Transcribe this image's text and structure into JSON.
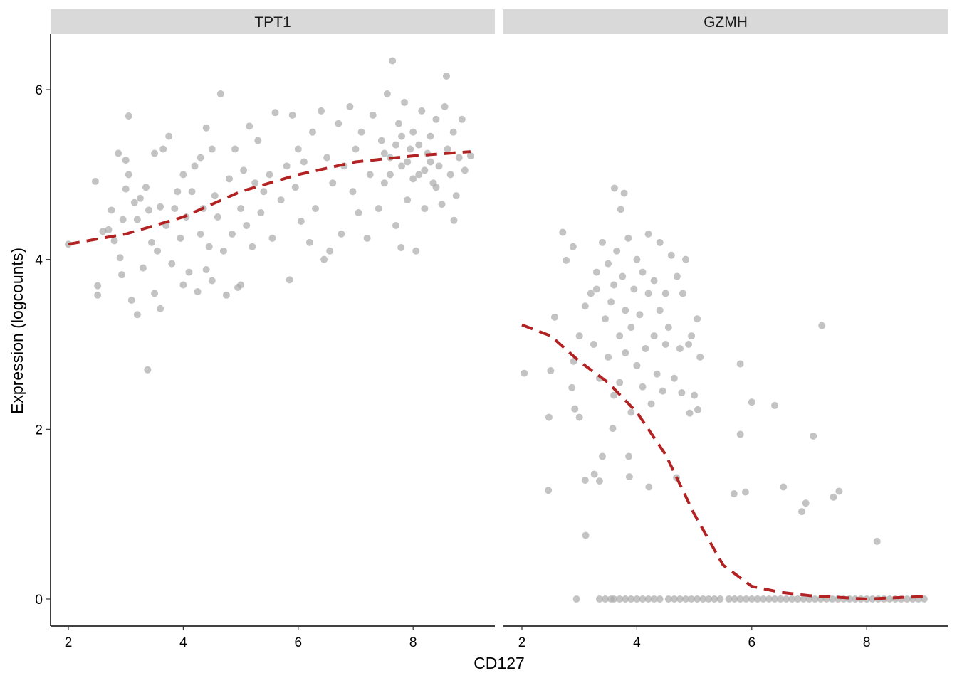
{
  "chart_data": {
    "type": "scatter",
    "xlabel": "CD127",
    "ylabel": "Expression (logcounts)",
    "xlim": [
      1.7,
      9.4
    ],
    "ylim": [
      -0.3,
      6.65
    ],
    "x_ticks": [
      "2",
      "4",
      "6",
      "8"
    ],
    "y_ticks": [
      "0",
      "2",
      "4",
      "6"
    ],
    "grid": false,
    "point_color": "#A9A9A9",
    "trend_color": "#B22222",
    "trend_style": "dashed",
    "panels": [
      {
        "title": "TPT1",
        "points": [
          [
            2.0,
            4.18
          ],
          [
            2.47,
            4.92
          ],
          [
            2.51,
            3.69
          ],
          [
            2.51,
            3.58
          ],
          [
            2.6,
            4.33
          ],
          [
            2.7,
            4.35
          ],
          [
            2.75,
            4.58
          ],
          [
            2.8,
            4.22
          ],
          [
            2.87,
            5.25
          ],
          [
            2.9,
            4.02
          ],
          [
            2.93,
            3.82
          ],
          [
            2.95,
            4.47
          ],
          [
            3.0,
            5.17
          ],
          [
            3.0,
            4.83
          ],
          [
            3.05,
            5.69
          ],
          [
            3.05,
            5.0
          ],
          [
            3.1,
            3.52
          ],
          [
            3.15,
            4.67
          ],
          [
            3.2,
            4.47
          ],
          [
            3.2,
            3.35
          ],
          [
            3.25,
            4.72
          ],
          [
            3.3,
            3.9
          ],
          [
            3.35,
            4.85
          ],
          [
            3.38,
            2.7
          ],
          [
            3.4,
            4.58
          ],
          [
            3.45,
            4.2
          ],
          [
            3.5,
            5.25
          ],
          [
            3.5,
            3.6
          ],
          [
            3.55,
            4.1
          ],
          [
            3.6,
            4.62
          ],
          [
            3.6,
            3.42
          ],
          [
            3.65,
            5.3
          ],
          [
            3.7,
            4.4
          ],
          [
            3.75,
            5.45
          ],
          [
            3.8,
            3.95
          ],
          [
            3.85,
            4.6
          ],
          [
            3.9,
            4.8
          ],
          [
            3.95,
            4.25
          ],
          [
            4.0,
            5.0
          ],
          [
            4.0,
            3.7
          ],
          [
            4.05,
            4.5
          ],
          [
            4.1,
            3.85
          ],
          [
            4.15,
            4.8
          ],
          [
            4.2,
            5.1
          ],
          [
            4.25,
            3.62
          ],
          [
            4.3,
            4.3
          ],
          [
            4.3,
            5.2
          ],
          [
            4.35,
            4.6
          ],
          [
            4.4,
            3.88
          ],
          [
            4.4,
            5.55
          ],
          [
            4.45,
            4.15
          ],
          [
            4.5,
            5.3
          ],
          [
            4.5,
            3.75
          ],
          [
            4.55,
            4.75
          ],
          [
            4.6,
            4.5
          ],
          [
            4.65,
            5.95
          ],
          [
            4.7,
            4.1
          ],
          [
            4.75,
            3.58
          ],
          [
            4.8,
            4.95
          ],
          [
            4.85,
            4.3
          ],
          [
            4.9,
            5.3
          ],
          [
            4.95,
            3.67
          ],
          [
            5.0,
            4.6
          ],
          [
            5.0,
            3.7
          ],
          [
            5.05,
            5.05
          ],
          [
            5.1,
            4.4
          ],
          [
            5.15,
            5.57
          ],
          [
            5.2,
            4.15
          ],
          [
            5.25,
            4.9
          ],
          [
            5.3,
            5.4
          ],
          [
            5.35,
            4.55
          ],
          [
            5.4,
            4.8
          ],
          [
            5.5,
            5.0
          ],
          [
            5.55,
            4.25
          ],
          [
            5.6,
            5.73
          ],
          [
            5.7,
            4.7
          ],
          [
            5.8,
            5.1
          ],
          [
            5.85,
            3.76
          ],
          [
            5.9,
            5.7
          ],
          [
            5.95,
            4.85
          ],
          [
            6.0,
            5.3
          ],
          [
            6.05,
            4.45
          ],
          [
            6.1,
            5.15
          ],
          [
            6.2,
            4.2
          ],
          [
            6.25,
            5.5
          ],
          [
            6.3,
            4.6
          ],
          [
            6.4,
            5.75
          ],
          [
            6.45,
            4.0
          ],
          [
            6.5,
            5.2
          ],
          [
            6.55,
            4.1
          ],
          [
            6.6,
            4.9
          ],
          [
            6.7,
            5.6
          ],
          [
            6.75,
            4.3
          ],
          [
            6.8,
            5.1
          ],
          [
            6.9,
            5.8
          ],
          [
            6.95,
            4.8
          ],
          [
            7.0,
            5.3
          ],
          [
            7.05,
            4.55
          ],
          [
            7.1,
            5.5
          ],
          [
            7.2,
            4.25
          ],
          [
            7.25,
            5.0
          ],
          [
            7.3,
            5.7
          ],
          [
            7.4,
            4.6
          ],
          [
            7.45,
            5.4
          ],
          [
            7.5,
            4.9
          ],
          [
            7.55,
            5.95
          ],
          [
            7.6,
            5.2
          ],
          [
            7.64,
            6.34
          ],
          [
            7.7,
            4.4
          ],
          [
            7.75,
            5.6
          ],
          [
            7.79,
            4.14
          ],
          [
            7.8,
            5.1
          ],
          [
            7.85,
            5.85
          ],
          [
            7.9,
            4.7
          ],
          [
            7.95,
            5.3
          ],
          [
            8.0,
            5.5
          ],
          [
            8.05,
            4.1
          ],
          [
            8.1,
            5.0
          ],
          [
            8.15,
            5.75
          ],
          [
            8.2,
            4.6
          ],
          [
            8.25,
            5.25
          ],
          [
            8.3,
            5.45
          ],
          [
            8.35,
            4.9
          ],
          [
            8.4,
            5.65
          ],
          [
            8.45,
            5.1
          ],
          [
            8.5,
            4.65
          ],
          [
            8.55,
            5.8
          ],
          [
            8.58,
            6.16
          ],
          [
            8.6,
            5.3
          ],
          [
            8.65,
            5.0
          ],
          [
            8.7,
            5.5
          ],
          [
            8.71,
            4.46
          ],
          [
            8.75,
            4.75
          ],
          [
            8.8,
            5.2
          ],
          [
            8.85,
            5.65
          ],
          [
            8.9,
            5.05
          ],
          [
            9.0,
            5.22
          ],
          [
            7.6,
            5.0
          ],
          [
            7.7,
            5.35
          ],
          [
            7.9,
            5.15
          ],
          [
            8.0,
            4.95
          ],
          [
            8.1,
            5.35
          ],
          [
            8.2,
            5.05
          ],
          [
            8.3,
            5.15
          ],
          [
            8.4,
            4.85
          ],
          [
            7.5,
            5.25
          ],
          [
            7.8,
            5.45
          ]
        ],
        "trend": [
          [
            2.0,
            4.18
          ],
          [
            3.0,
            4.3
          ],
          [
            4.0,
            4.5
          ],
          [
            5.0,
            4.8
          ],
          [
            6.0,
            5.0
          ],
          [
            7.0,
            5.15
          ],
          [
            8.0,
            5.22
          ],
          [
            9.0,
            5.27
          ]
        ]
      },
      {
        "title": "GZMH",
        "points": [
          [
            2.04,
            2.66
          ],
          [
            2.47,
            2.14
          ],
          [
            2.46,
            1.28
          ],
          [
            2.5,
            2.69
          ],
          [
            2.71,
            4.32
          ],
          [
            2.57,
            3.32
          ],
          [
            2.77,
            3.99
          ],
          [
            2.89,
            4.15
          ],
          [
            2.87,
            2.49
          ],
          [
            2.92,
            2.24
          ],
          [
            3.0,
            2.14
          ],
          [
            3.1,
            1.4
          ],
          [
            3.11,
            0.75
          ],
          [
            3.26,
            1.47
          ],
          [
            3.35,
            1.39
          ],
          [
            3.4,
            1.68
          ],
          [
            3.58,
            2.01
          ],
          [
            3.61,
            4.84
          ],
          [
            3.78,
            4.78
          ],
          [
            3.72,
            4.59
          ],
          [
            3.86,
            1.68
          ],
          [
            3.87,
            1.44
          ],
          [
            4.21,
            1.32
          ],
          [
            4.69,
            1.43
          ],
          [
            4.78,
            2.43
          ],
          [
            4.92,
            2.19
          ],
          [
            5.06,
            2.23
          ],
          [
            5.8,
            2.77
          ],
          [
            6.0,
            2.32
          ],
          [
            5.8,
            1.94
          ],
          [
            6.4,
            2.28
          ],
          [
            5.69,
            1.24
          ],
          [
            5.89,
            1.26
          ],
          [
            6.55,
            1.32
          ],
          [
            6.87,
            1.03
          ],
          [
            6.94,
            1.13
          ],
          [
            7.07,
            1.92
          ],
          [
            7.22,
            3.22
          ],
          [
            7.42,
            1.2
          ],
          [
            7.52,
            1.27
          ],
          [
            8.18,
            0.68
          ],
          [
            3.2,
            3.6
          ],
          [
            3.25,
            3.0
          ],
          [
            3.3,
            3.85
          ],
          [
            3.35,
            2.6
          ],
          [
            3.4,
            4.2
          ],
          [
            3.45,
            3.3
          ],
          [
            3.5,
            2.85
          ],
          [
            3.5,
            3.95
          ],
          [
            3.55,
            3.5
          ],
          [
            3.6,
            2.4
          ],
          [
            3.6,
            3.7
          ],
          [
            3.65,
            4.1
          ],
          [
            3.7,
            3.1
          ],
          [
            3.7,
            2.55
          ],
          [
            3.75,
            3.8
          ],
          [
            3.8,
            3.4
          ],
          [
            3.8,
            2.9
          ],
          [
            3.85,
            4.25
          ],
          [
            3.9,
            3.2
          ],
          [
            3.9,
            2.2
          ],
          [
            3.95,
            3.65
          ],
          [
            4.0,
            2.75
          ],
          [
            4.0,
            4.0
          ],
          [
            4.05,
            3.35
          ],
          [
            4.1,
            2.5
          ],
          [
            4.1,
            3.85
          ],
          [
            4.15,
            2.95
          ],
          [
            4.2,
            3.6
          ],
          [
            4.2,
            4.3
          ],
          [
            4.25,
            2.3
          ],
          [
            4.3,
            3.1
          ],
          [
            4.3,
            3.75
          ],
          [
            4.35,
            2.65
          ],
          [
            4.4,
            4.2
          ],
          [
            4.4,
            3.4
          ],
          [
            4.45,
            2.45
          ],
          [
            4.5,
            3.0
          ],
          [
            4.5,
            3.6
          ],
          [
            4.55,
            3.2
          ],
          [
            4.6,
            4.05
          ],
          [
            4.65,
            2.6
          ],
          [
            4.7,
            3.8
          ],
          [
            4.75,
            2.95
          ],
          [
            4.8,
            3.6
          ],
          [
            4.85,
            4.0
          ],
          [
            4.9,
            3.0
          ],
          [
            4.95,
            3.1
          ],
          [
            5.0,
            2.4
          ],
          [
            5.05,
            3.3
          ],
          [
            5.1,
            2.85
          ],
          [
            3.0,
            3.1
          ],
          [
            2.9,
            2.8
          ],
          [
            3.1,
            3.45
          ],
          [
            3.3,
            3.65
          ],
          [
            2.95,
            0
          ],
          [
            3.35,
            0
          ],
          [
            3.45,
            0
          ],
          [
            3.55,
            0
          ],
          [
            3.6,
            0
          ],
          [
            3.7,
            0
          ],
          [
            3.8,
            0
          ],
          [
            3.9,
            0
          ],
          [
            4.0,
            0
          ],
          [
            4.1,
            0
          ],
          [
            4.2,
            0
          ],
          [
            4.3,
            0
          ],
          [
            4.4,
            0
          ],
          [
            4.55,
            0
          ],
          [
            4.65,
            0
          ],
          [
            4.75,
            0
          ],
          [
            4.85,
            0
          ],
          [
            4.95,
            0
          ],
          [
            5.05,
            0
          ],
          [
            5.15,
            0
          ],
          [
            5.25,
            0
          ],
          [
            5.35,
            0
          ],
          [
            5.45,
            0
          ],
          [
            5.6,
            0
          ],
          [
            5.7,
            0
          ],
          [
            5.8,
            0
          ],
          [
            5.9,
            0
          ],
          [
            6.0,
            0
          ],
          [
            6.1,
            0
          ],
          [
            6.2,
            0
          ],
          [
            6.3,
            0
          ],
          [
            6.4,
            0
          ],
          [
            6.5,
            0
          ],
          [
            6.6,
            0
          ],
          [
            6.7,
            0
          ],
          [
            6.8,
            0
          ],
          [
            6.9,
            0
          ],
          [
            7.0,
            0
          ],
          [
            7.1,
            0
          ],
          [
            7.2,
            0
          ],
          [
            7.3,
            0
          ],
          [
            7.4,
            0
          ],
          [
            7.5,
            0
          ],
          [
            7.6,
            0
          ],
          [
            7.7,
            0
          ],
          [
            7.8,
            0
          ],
          [
            7.9,
            0
          ],
          [
            8.0,
            0
          ],
          [
            8.1,
            0
          ],
          [
            8.2,
            0
          ],
          [
            8.3,
            0
          ],
          [
            8.4,
            0
          ],
          [
            8.5,
            0
          ],
          [
            8.6,
            0
          ],
          [
            8.7,
            0
          ],
          [
            8.8,
            0
          ],
          [
            8.9,
            0
          ],
          [
            9.0,
            0
          ]
        ],
        "trend": [
          [
            2.0,
            3.23
          ],
          [
            2.5,
            3.1
          ],
          [
            3.0,
            2.8
          ],
          [
            3.5,
            2.55
          ],
          [
            4.0,
            2.2
          ],
          [
            4.5,
            1.7
          ],
          [
            5.0,
            1.0
          ],
          [
            5.5,
            0.4
          ],
          [
            6.0,
            0.15
          ],
          [
            6.5,
            0.08
          ],
          [
            7.0,
            0.04
          ],
          [
            8.0,
            0.0
          ],
          [
            9.0,
            0.03
          ]
        ]
      }
    ]
  }
}
